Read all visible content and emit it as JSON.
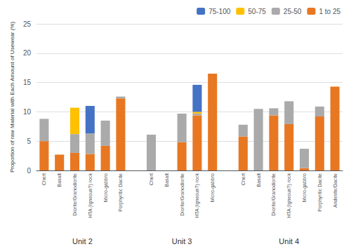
{
  "chart_data": {
    "type": "bar",
    "stacked": true,
    "ylabel": "Proportion of raw Material with Each Amount of Usewear (%)",
    "groups": [
      {
        "label": "Unit 2",
        "categories": [
          "Chert",
          "Basalt",
          "Diorite/Granodiorite",
          "HTA (Igneous?) rock",
          "Micro-gabbro",
          "Porphyritic Dacite"
        ]
      },
      {
        "label": "Unit 3",
        "categories": [
          "Chert",
          "Basalt",
          "Diorite/Granodiorite",
          "HTA (Igneous?) rock",
          "Micro-gabbro"
        ]
      },
      {
        "label": "Unit 4",
        "categories": [
          "Chert",
          "Basalt",
          "Diorite/Granodiorite",
          "HTA (Igneous?) rock",
          "Micro-gabbro",
          "Porphyritic Dacite",
          "Andesite/Dacite"
        ]
      }
    ],
    "series": [
      {
        "name": "1 to 25",
        "color": "#E87722",
        "values": [
          5.0,
          2.7,
          3.0,
          2.8,
          4.2,
          12.3,
          0.0,
          0.0,
          4.8,
          9.4,
          16.5,
          5.8,
          0.0,
          9.4,
          7.9,
          0.4,
          9.2,
          14.3
        ]
      },
      {
        "name": "25-50",
        "color": "#AAAAAA",
        "values": [
          3.8,
          0.0,
          3.2,
          3.5,
          4.3,
          0.3,
          6.1,
          0.0,
          4.9,
          0.3,
          0.0,
          2.0,
          10.5,
          1.2,
          3.9,
          3.3,
          1.7,
          0.0
        ]
      },
      {
        "name": "50-75",
        "color": "#FFC000",
        "values": [
          0.0,
          0.0,
          4.5,
          0.0,
          0.0,
          0.0,
          0.0,
          0.0,
          0.0,
          0.3,
          0.0,
          0.0,
          0.0,
          0.0,
          0.0,
          0.0,
          0.0,
          0.0
        ]
      },
      {
        "name": "75-100",
        "color": "#4472C4",
        "values": [
          0.0,
          0.0,
          0.0,
          4.7,
          0.0,
          0.0,
          0.0,
          0.0,
          0.0,
          4.6,
          0.0,
          0.0,
          0.0,
          0.0,
          0.0,
          0.0,
          0.0,
          0.0
        ]
      }
    ],
    "ylim": [
      0,
      25
    ],
    "yticks": [
      0,
      5,
      10,
      15,
      20,
      25
    ],
    "grid": true,
    "legend": "upper right"
  }
}
